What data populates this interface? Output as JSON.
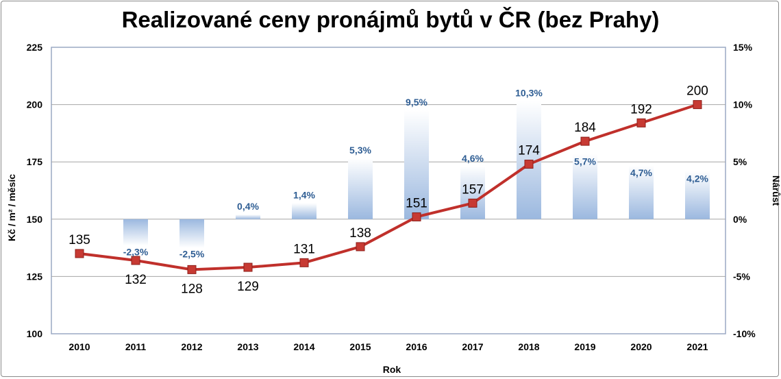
{
  "chart_data": {
    "type": "bar+line",
    "title": "Realizované ceny pronájmů bytů v ČR (bez Prahy)",
    "xlabel": "Rok",
    "ylabel_left": "Kč / m² / měsíc",
    "ylabel_right": "Nárůst",
    "categories": [
      "2010",
      "2011",
      "2012",
      "2013",
      "2014",
      "2015",
      "2016",
      "2017",
      "2018",
      "2019",
      "2020",
      "2021"
    ],
    "ylim_left": [
      100,
      225
    ],
    "ylim_right": [
      -10,
      15
    ],
    "left_ticks": [
      "100",
      "125",
      "150",
      "175",
      "200",
      "225"
    ],
    "right_ticks": [
      "-10%",
      "-5%",
      "0%",
      "5%",
      "10%",
      "15%"
    ],
    "grid": true,
    "series": [
      {
        "type": "line",
        "axis": "left",
        "color": "#c0302b",
        "values": [
          135,
          132,
          128,
          129,
          131,
          138,
          151,
          157,
          174,
          184,
          192,
          200
        ],
        "labels": [
          "135",
          "132",
          "128",
          "129",
          "131",
          "138",
          "151",
          "157",
          "174",
          "184",
          "192",
          "200"
        ]
      },
      {
        "type": "bar",
        "axis": "right",
        "color": "#a8c0e0",
        "values": [
          null,
          -2.3,
          -2.5,
          0.4,
          1.4,
          5.3,
          9.5,
          4.6,
          10.3,
          5.7,
          4.7,
          4.2
        ],
        "labels": [
          "",
          "-2,3%",
          "-2,5%",
          "0,4%",
          "1,4%",
          "5,3%",
          "9,5%",
          "4,6%",
          "10,3%",
          "5,7%",
          "4,7%",
          "4,2%"
        ]
      }
    ]
  }
}
